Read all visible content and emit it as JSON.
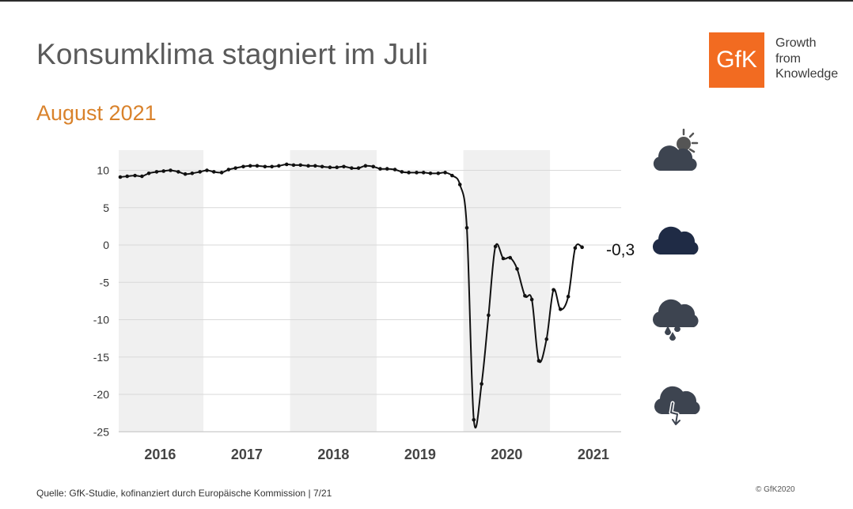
{
  "header": {
    "title": "Konsumklima stagniert im Juli",
    "subtitle": "August 2021"
  },
  "logo": {
    "mark": "GfK",
    "tagline": [
      "Growth",
      "from",
      "Knowledge"
    ],
    "color": "#f26b21"
  },
  "footer": {
    "source": "Quelle: GfK-Studie, kofinanziert durch Europäische Kommission | 7/21",
    "copyright": "© GfK2020"
  },
  "weather_icons": [
    "sun-behind-cloud-icon",
    "dark-cloud-icon",
    "rain-cloud-icon",
    "lightning-cloud-icon"
  ],
  "chart_data": {
    "type": "line",
    "title": "",
    "xlabel": "",
    "ylabel": "",
    "x_tick_labels": [
      "2016",
      "2017",
      "2018",
      "2019",
      "2020",
      "2021"
    ],
    "y_ticks": [
      10,
      5,
      0,
      -5,
      -10,
      -15,
      -20,
      -25
    ],
    "y_tick_labels": [
      "10",
      "5",
      "0",
      "-5",
      "-10",
      "-15",
      "-20",
      "-25"
    ],
    "ylim": [
      -25,
      11
    ],
    "xlim": [
      2016.0,
      2021.77
    ],
    "grid": true,
    "alternating_year_bands": true,
    "end_label": "-0,3",
    "line_color": "#111111",
    "series": [
      {
        "points": [
          [
            2016.0,
            9.1
          ],
          [
            2016.08,
            9.2
          ],
          [
            2016.17,
            9.3
          ],
          [
            2016.25,
            9.2
          ],
          [
            2016.33,
            9.6
          ],
          [
            2016.42,
            9.8
          ],
          [
            2016.5,
            9.9
          ],
          [
            2016.58,
            10.0
          ],
          [
            2016.67,
            9.8
          ],
          [
            2016.75,
            9.5
          ],
          [
            2016.83,
            9.6
          ],
          [
            2016.92,
            9.8
          ],
          [
            2017.0,
            10.0
          ],
          [
            2017.08,
            9.8
          ],
          [
            2017.17,
            9.7
          ],
          [
            2017.25,
            10.1
          ],
          [
            2017.33,
            10.3
          ],
          [
            2017.42,
            10.5
          ],
          [
            2017.5,
            10.6
          ],
          [
            2017.58,
            10.6
          ],
          [
            2017.67,
            10.5
          ],
          [
            2017.75,
            10.5
          ],
          [
            2017.83,
            10.6
          ],
          [
            2017.92,
            10.8
          ],
          [
            2018.0,
            10.7
          ],
          [
            2018.08,
            10.7
          ],
          [
            2018.17,
            10.6
          ],
          [
            2018.25,
            10.6
          ],
          [
            2018.33,
            10.5
          ],
          [
            2018.42,
            10.4
          ],
          [
            2018.5,
            10.4
          ],
          [
            2018.58,
            10.5
          ],
          [
            2018.67,
            10.3
          ],
          [
            2018.75,
            10.3
          ],
          [
            2018.83,
            10.6
          ],
          [
            2018.92,
            10.5
          ],
          [
            2019.0,
            10.2
          ],
          [
            2019.08,
            10.2
          ],
          [
            2019.17,
            10.1
          ],
          [
            2019.25,
            9.8
          ],
          [
            2019.33,
            9.7
          ],
          [
            2019.42,
            9.7
          ],
          [
            2019.5,
            9.7
          ],
          [
            2019.58,
            9.6
          ],
          [
            2019.67,
            9.6
          ],
          [
            2019.75,
            9.7
          ],
          [
            2019.83,
            9.3
          ],
          [
            2019.92,
            8.1
          ],
          [
            2020.0,
            2.3
          ],
          [
            2020.08,
            -23.4
          ],
          [
            2020.17,
            -18.6
          ],
          [
            2020.25,
            -9.4
          ],
          [
            2020.33,
            -0.2
          ],
          [
            2020.42,
            -1.8
          ],
          [
            2020.5,
            -1.7
          ],
          [
            2020.58,
            -3.2
          ],
          [
            2020.67,
            -6.8
          ],
          [
            2020.75,
            -7.3
          ],
          [
            2020.83,
            -15.5
          ],
          [
            2020.92,
            -12.6
          ],
          [
            2021.0,
            -6.0
          ],
          [
            2021.08,
            -8.6
          ],
          [
            2021.17,
            -6.9
          ],
          [
            2021.25,
            -0.4
          ],
          [
            2021.33,
            -0.3
          ]
        ]
      }
    ]
  }
}
